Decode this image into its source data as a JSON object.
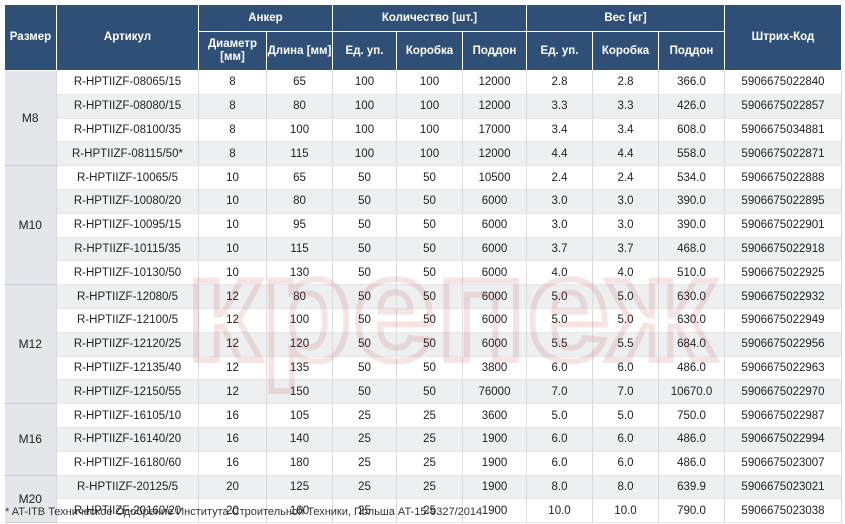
{
  "header": {
    "size": "Размер",
    "article": "Артикул",
    "anchor": "Анкер",
    "quantity": "Количество [шт.]",
    "weight": "Вес [кг]",
    "barcode": "Штрих-Код",
    "diameter": "Диаметр [мм]",
    "length": "Длина [мм]",
    "q_unit": "Ед. уп.",
    "q_box": "Коробка",
    "q_pallet": "Поддон",
    "w_unit": "Ед. уп.",
    "w_box": "Коробка",
    "w_pallet": "Поддон"
  },
  "groups": [
    {
      "size": "M8",
      "rows": 4
    },
    {
      "size": "M10",
      "rows": 5
    },
    {
      "size": "M12",
      "rows": 5
    },
    {
      "size": "M16",
      "rows": 3
    },
    {
      "size": "M20",
      "rows": 2
    }
  ],
  "rows": [
    [
      "R-HPTIIZF-08065/15",
      "8",
      "65",
      "100",
      "100",
      "12000",
      "2.8",
      "2.8",
      "366.0",
      "5906675022840"
    ],
    [
      "R-HPTIIZF-08080/15",
      "8",
      "80",
      "100",
      "100",
      "12000",
      "3.3",
      "3.3",
      "426.0",
      "5906675022857"
    ],
    [
      "R-HPTIIZF-08100/35",
      "8",
      "100",
      "100",
      "100",
      "17000",
      "3.4",
      "3.4",
      "608.0",
      "5906675034881"
    ],
    [
      "R-HPTIIZF-08115/50*",
      "8",
      "115",
      "100",
      "100",
      "12000",
      "4.4",
      "4.4",
      "558.0",
      "5906675022871"
    ],
    [
      "R-HPTIIZF-10065/5",
      "10",
      "65",
      "50",
      "50",
      "10500",
      "2.4",
      "2.4",
      "534.0",
      "5906675022888"
    ],
    [
      "R-HPTIIZF-10080/20",
      "10",
      "80",
      "50",
      "50",
      "6000",
      "3.0",
      "3.0",
      "390.0",
      "5906675022895"
    ],
    [
      "R-HPTIIZF-10095/15",
      "10",
      "95",
      "50",
      "50",
      "6000",
      "3.0",
      "3.0",
      "390.0",
      "5906675022901"
    ],
    [
      "R-HPTIIZF-10115/35",
      "10",
      "115",
      "50",
      "50",
      "6000",
      "3.7",
      "3.7",
      "468.0",
      "5906675022918"
    ],
    [
      "R-HPTIIZF-10130/50",
      "10",
      "130",
      "50",
      "50",
      "6000",
      "4.0",
      "4.0",
      "510.0",
      "5906675022925"
    ],
    [
      "R-HPTIIZF-12080/5",
      "12",
      "80",
      "50",
      "50",
      "6000",
      "5.0",
      "5.0",
      "630.0",
      "5906675022932"
    ],
    [
      "R-HPTIIZF-12100/5",
      "12",
      "100",
      "50",
      "50",
      "6000",
      "5.0",
      "5.0",
      "630.0",
      "5906675022949"
    ],
    [
      "R-HPTIIZF-12120/25",
      "12",
      "120",
      "50",
      "50",
      "6000",
      "5.5",
      "5.5",
      "684.0",
      "5906675022956"
    ],
    [
      "R-HPTIIZF-12135/40",
      "12",
      "135",
      "50",
      "50",
      "3800",
      "6.0",
      "6.0",
      "486.0",
      "5906675022963"
    ],
    [
      "R-HPTIIZF-12150/55",
      "12",
      "150",
      "50",
      "50",
      "76000",
      "7.0",
      "7.0",
      "10670.0",
      "5906675022970"
    ],
    [
      "R-HPTIIZF-16105/10",
      "16",
      "105",
      "25",
      "25",
      "3600",
      "5.0",
      "5.0",
      "750.0",
      "5906675022987"
    ],
    [
      "R-HPTIIZF-16140/20",
      "16",
      "140",
      "25",
      "25",
      "1900",
      "6.0",
      "6.0",
      "486.0",
      "5906675022994"
    ],
    [
      "R-HPTIIZF-16180/60",
      "16",
      "180",
      "25",
      "25",
      "1900",
      "6.0",
      "6.0",
      "486.0",
      "5906675023007"
    ],
    [
      "R-HPTIIZF-20125/5",
      "20",
      "125",
      "25",
      "25",
      "1900",
      "8.0",
      "8.0",
      "639.9",
      "5906675023021"
    ],
    [
      "R-HPTIIZF-20160/20",
      "20",
      "160",
      "25",
      "25",
      "1900",
      "10.0",
      "10.0",
      "790.0",
      "5906675023038"
    ]
  ],
  "watermark_text": "крепеж",
  "footnote": "* AT-ITB Техническое Одобрение Института Строительной Техники, Польша AT-15-9327/2014",
  "colors": {
    "header_bg": "#2f4f77",
    "watermark": "#c0392b"
  }
}
